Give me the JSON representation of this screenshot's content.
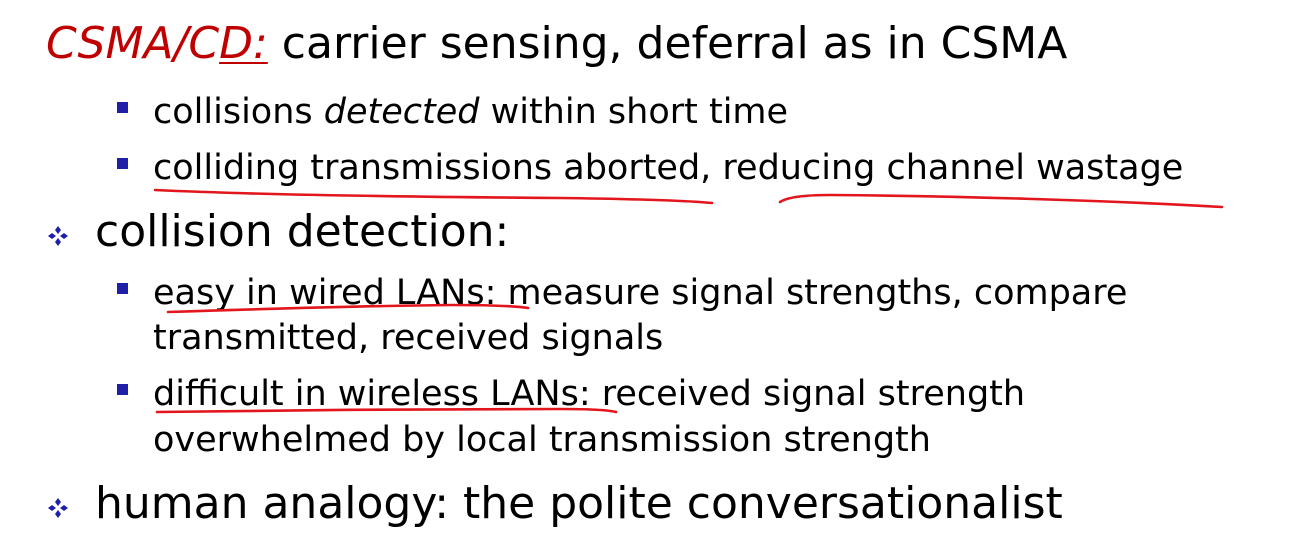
{
  "title": {
    "term_prefix": "CSMA/C",
    "term_underlined": "D:",
    "rest": " carrier sensing, deferral as in CSMA"
  },
  "bullets": [
    {
      "text_before": "collisions ",
      "text_italic": "detected",
      "text_after": " within short time"
    },
    {
      "text": "colliding transmissions aborted, reducing channel wastage"
    }
  ],
  "point_detection": {
    "text": "collision detection:"
  },
  "detection_bullets": [
    {
      "line1": "easy in wired LANs: measure signal strengths, compare",
      "line2": "transmitted, received signals"
    },
    {
      "line1": "difficult in wireless LANs: received signal strength",
      "line2": "overwhelmed by local transmission strength"
    }
  ],
  "point_analogy": {
    "text": "human analogy: the polite conversationalist"
  },
  "colors": {
    "accent_red": "#c00000",
    "bullet_blue": "#1f1fa8",
    "annotation_ink": "#e2161c"
  }
}
